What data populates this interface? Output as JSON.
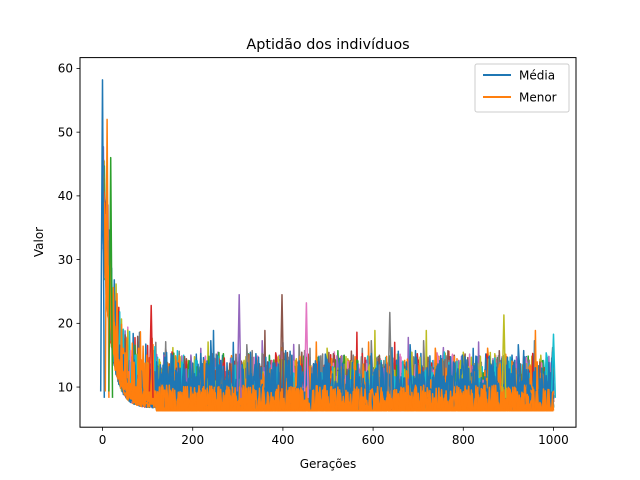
{
  "chart_data": {
    "type": "line",
    "title": "Aptidão dos indivíduos",
    "xlabel": "Gerações",
    "ylabel": "Valor",
    "xlim": [
      -50,
      1050
    ],
    "ylim": [
      3.7,
      61.7
    ],
    "x_ticks": [
      0,
      200,
      400,
      600,
      800,
      1000
    ],
    "y_ticks": [
      10,
      20,
      30,
      40,
      50,
      60
    ],
    "grid": false,
    "legend_position": "top-right",
    "legend": [
      {
        "label": "Média",
        "color": "#1f77b4"
      },
      {
        "label": "Menor",
        "color": "#ff7f0e"
      }
    ],
    "series_colors": [
      "#1f77b4",
      "#ff7f0e",
      "#2ca02c",
      "#d62728",
      "#9467bd",
      "#8c564b",
      "#e377c2",
      "#7f7f7f",
      "#bcbd22",
      "#17becf"
    ],
    "generations": 1000,
    "approx_values": {
      "gen0_range": [
        33,
        58
      ],
      "plateau_min": 6.3,
      "typical_spike_range": [
        10,
        18
      ],
      "notable_peaks": [
        {
          "x": 0,
          "y": 58.2
        },
        {
          "x": 10,
          "y": 52
        },
        {
          "x": 18,
          "y": 46
        },
        {
          "x": 108,
          "y": 22.8
        },
        {
          "x": 303,
          "y": 24.5
        },
        {
          "x": 398,
          "y": 24.5
        },
        {
          "x": 452,
          "y": 23.2
        },
        {
          "x": 637,
          "y": 21.7
        },
        {
          "x": 890,
          "y": 21.3
        },
        {
          "x": 1000,
          "y": 18.3
        }
      ]
    }
  }
}
